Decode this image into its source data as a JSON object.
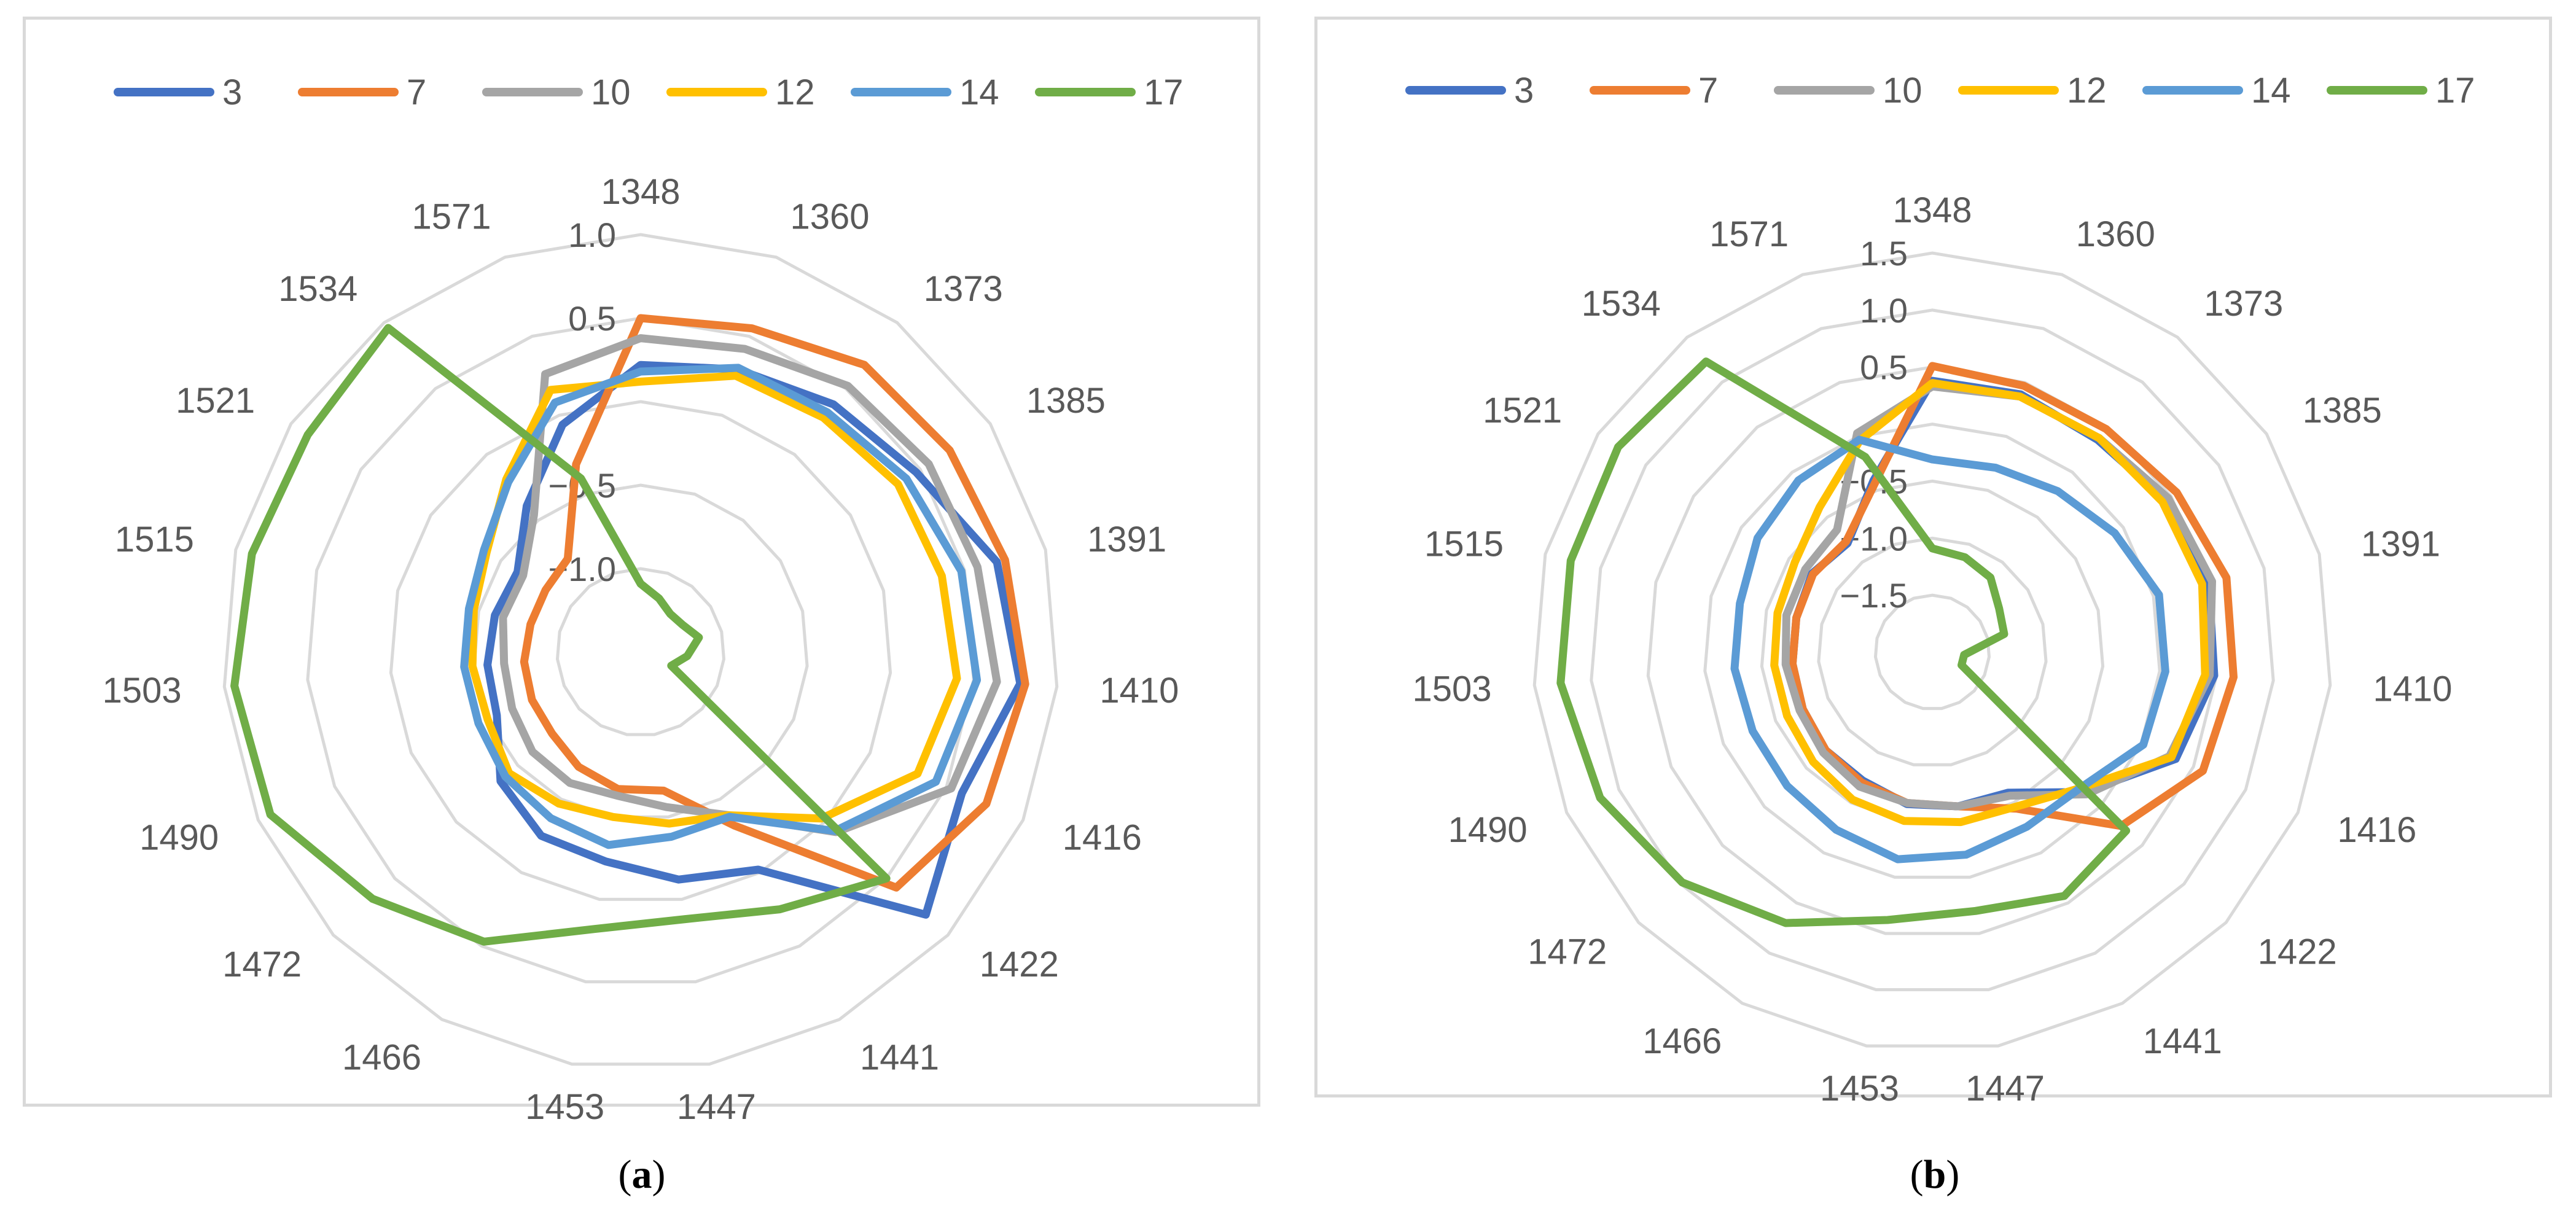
{
  "chart_data": [
    {
      "panel": "a",
      "type": "radar",
      "caption_letter": "a",
      "categories": [
        "1348",
        "1360",
        "1373",
        "1385",
        "1391",
        "1410",
        "1416",
        "1422",
        "1441",
        "1447",
        "1453",
        "1466",
        "1472",
        "1490",
        "1503",
        "1515",
        "1521",
        "1534",
        "1571"
      ],
      "rlim": [
        -1.5,
        1.0
      ],
      "rticks": [
        -1.0,
        -0.5,
        0.5,
        1.0
      ],
      "rtick_labels": [
        "−1.0",
        "−0.5",
        "0.5",
        "1.0"
      ],
      "legend_position": "top",
      "grid": true,
      "series": [
        {
          "name": "3",
          "color": "#4472c4",
          "values": [
            0.22,
            0.29,
            0.38,
            0.47,
            0.7,
            0.78,
            0.6,
            0.82,
            -0.02,
            -0.12,
            -0.23,
            -0.25,
            -0.36,
            -0.56,
            -0.58,
            -0.6,
            -0.62,
            -0.39,
            -0.06
          ]
        },
        {
          "name": "7",
          "color": "#ed7d31",
          "values": [
            0.5,
            0.55,
            0.68,
            0.71,
            0.75,
            0.81,
            0.76,
            0.58,
            -0.32,
            -0.66,
            -0.67,
            -0.72,
            -0.78,
            -0.79,
            -0.8,
            -0.82,
            -0.82,
            -0.79,
            -0.31
          ]
        },
        {
          "name": "10",
          "color": "#a5a5a5",
          "values": [
            0.38,
            0.42,
            0.52,
            0.56,
            0.58,
            0.64,
            0.53,
            0.09,
            -0.39,
            -0.56,
            -0.63,
            -0.61,
            -0.62,
            -0.66,
            -0.68,
            -0.65,
            -0.66,
            -0.46,
            0.26
          ]
        },
        {
          "name": "12",
          "color": "#ffc000",
          "values": [
            0.12,
            0.25,
            0.28,
            0.34,
            0.36,
            0.4,
            0.31,
            -0.03,
            -0.39,
            -0.46,
            -0.5,
            -0.47,
            -0.43,
            -0.5,
            -0.49,
            -0.47,
            -0.4,
            -0.19,
            0.16
          ]
        },
        {
          "name": "14",
          "color": "#5b9bd5",
          "values": [
            0.18,
            0.3,
            0.32,
            0.4,
            0.48,
            0.52,
            0.43,
            0.08,
            -0.38,
            -0.38,
            -0.33,
            -0.37,
            -0.4,
            -0.44,
            -0.44,
            -0.44,
            -0.38,
            -0.21,
            0.08
          ]
        },
        {
          "name": "17",
          "color": "#70ad47",
          "values": [
            -1.09,
            -1.16,
            -1.21,
            -1.2,
            -1.14,
            -1.22,
            -1.3,
            0.5,
            0.25,
            0.12,
            0.18,
            0.47,
            0.68,
            0.92,
            0.94,
            0.9,
            0.88,
            0.96,
            -0.4
          ]
        }
      ]
    },
    {
      "panel": "b",
      "type": "radar",
      "caption_letter": "b",
      "categories": [
        "1348",
        "1360",
        "1373",
        "1385",
        "1391",
        "1410",
        "1416",
        "1422",
        "1441",
        "1447",
        "1453",
        "1466",
        "1472",
        "1490",
        "1503",
        "1515",
        "1521",
        "1534",
        "1571"
      ],
      "rlim": [
        -2.0,
        1.5
      ],
      "rticks": [
        -1.5,
        -1.0,
        -0.5,
        0.5,
        1.0,
        1.5
      ],
      "rtick_labels": [
        "−1.5",
        "−1.0",
        "−0.5",
        "0.5",
        "1.0",
        "1.5"
      ],
      "legend_position": "top",
      "grid": true,
      "series": [
        {
          "name": "3",
          "color": "#4472c4",
          "values": [
            0.38,
            0.39,
            0.36,
            0.44,
            0.5,
            0.48,
            0.33,
            -0.19,
            -0.6,
            -0.63,
            -0.65,
            -0.72,
            -0.73,
            -0.76,
            -0.77,
            -0.77,
            -0.74,
            -0.79,
            -0.41
          ]
        },
        {
          "name": "7",
          "color": "#ed7d31",
          "values": [
            0.51,
            0.47,
            0.48,
            0.56,
            0.66,
            0.65,
            0.59,
            0.25,
            -0.44,
            -0.63,
            -0.66,
            -0.7,
            -0.73,
            -0.76,
            -0.77,
            -0.77,
            -0.75,
            -0.77,
            -0.44
          ]
        },
        {
          "name": "10",
          "color": "#a5a5a5",
          "values": [
            0.33,
            0.37,
            0.38,
            0.47,
            0.53,
            0.44,
            0.27,
            -0.16,
            -0.57,
            -0.63,
            -0.66,
            -0.66,
            -0.7,
            -0.73,
            -0.71,
            -0.68,
            -0.67,
            -0.64,
            0.03
          ]
        },
        {
          "name": "12",
          "color": "#ffc000",
          "values": [
            0.36,
            0.37,
            0.38,
            0.41,
            0.44,
            0.4,
            0.29,
            -0.24,
            -0.46,
            -0.49,
            -0.5,
            -0.53,
            -0.58,
            -0.61,
            -0.61,
            -0.6,
            -0.56,
            -0.39,
            -0.04
          ]
        },
        {
          "name": "14",
          "color": "#5b9bd5",
          "values": [
            -0.31,
            -0.29,
            -0.21,
            -0.09,
            0.05,
            0.05,
            0.02,
            -0.24,
            -0.26,
            -0.2,
            -0.16,
            -0.23,
            -0.27,
            -0.28,
            -0.26,
            -0.26,
            -0.17,
            -0.09,
            -0.03
          ]
        },
        {
          "name": "17",
          "color": "#70ad47",
          "values": [
            -1.09,
            -1.12,
            -1.17,
            -1.3,
            -1.35,
            -1.72,
            -1.72,
            0.31,
            0.43,
            0.3,
            0.38,
            0.7,
            0.98,
            1.18,
            1.27,
            1.27,
            1.29,
            1.23,
            -0.19
          ]
        }
      ]
    }
  ]
}
